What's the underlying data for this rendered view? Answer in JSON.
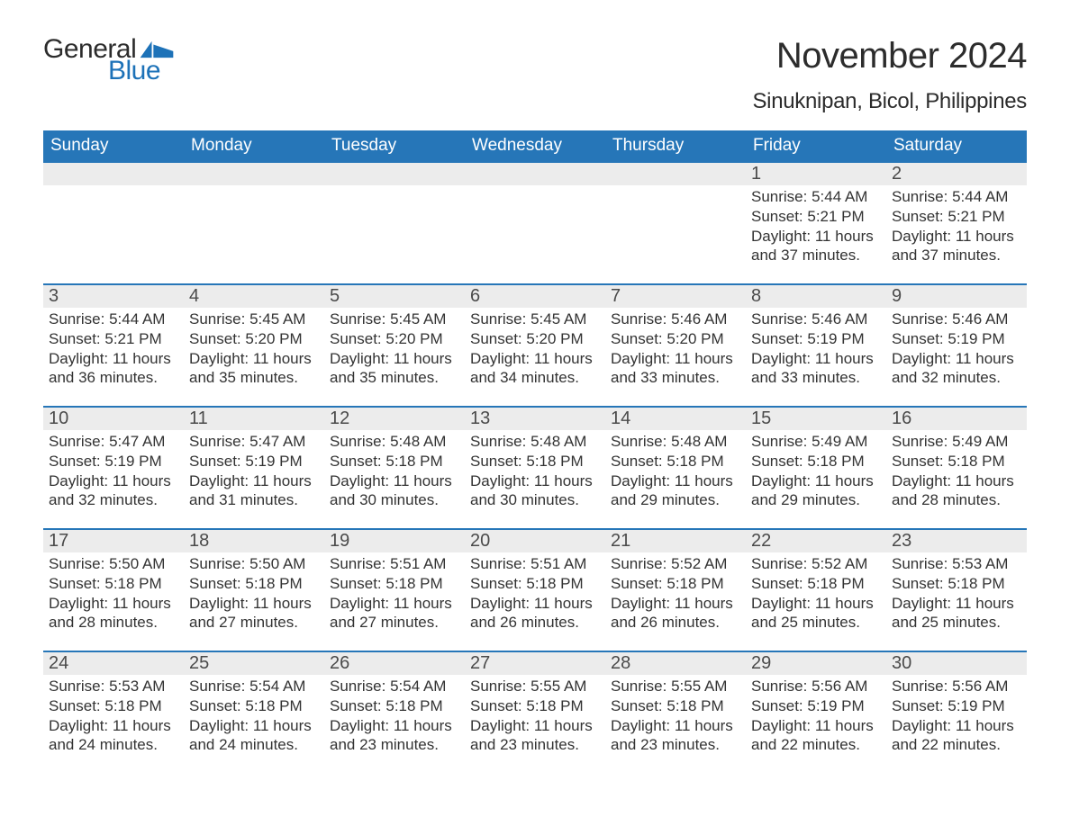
{
  "brand": {
    "general": "General",
    "blue": "Blue"
  },
  "title": "November 2024",
  "location": "Sinuknipan, Bicol, Philippines",
  "header_bg": "#2676b8",
  "stripe_bg": "#ececec",
  "text_color": "#333333",
  "weekdays": [
    "Sunday",
    "Monday",
    "Tuesday",
    "Wednesday",
    "Thursday",
    "Friday",
    "Saturday"
  ],
  "weeks": [
    {
      "days": [
        {
          "n": null
        },
        {
          "n": null
        },
        {
          "n": null
        },
        {
          "n": null
        },
        {
          "n": null
        },
        {
          "n": "1",
          "sunrise": "Sunrise: 5:44 AM",
          "sunset": "Sunset: 5:21 PM",
          "dl1": "Daylight: 11 hours",
          "dl2": "and 37 minutes."
        },
        {
          "n": "2",
          "sunrise": "Sunrise: 5:44 AM",
          "sunset": "Sunset: 5:21 PM",
          "dl1": "Daylight: 11 hours",
          "dl2": "and 37 minutes."
        }
      ]
    },
    {
      "days": [
        {
          "n": "3",
          "sunrise": "Sunrise: 5:44 AM",
          "sunset": "Sunset: 5:21 PM",
          "dl1": "Daylight: 11 hours",
          "dl2": "and 36 minutes."
        },
        {
          "n": "4",
          "sunrise": "Sunrise: 5:45 AM",
          "sunset": "Sunset: 5:20 PM",
          "dl1": "Daylight: 11 hours",
          "dl2": "and 35 minutes."
        },
        {
          "n": "5",
          "sunrise": "Sunrise: 5:45 AM",
          "sunset": "Sunset: 5:20 PM",
          "dl1": "Daylight: 11 hours",
          "dl2": "and 35 minutes."
        },
        {
          "n": "6",
          "sunrise": "Sunrise: 5:45 AM",
          "sunset": "Sunset: 5:20 PM",
          "dl1": "Daylight: 11 hours",
          "dl2": "and 34 minutes."
        },
        {
          "n": "7",
          "sunrise": "Sunrise: 5:46 AM",
          "sunset": "Sunset: 5:20 PM",
          "dl1": "Daylight: 11 hours",
          "dl2": "and 33 minutes."
        },
        {
          "n": "8",
          "sunrise": "Sunrise: 5:46 AM",
          "sunset": "Sunset: 5:19 PM",
          "dl1": "Daylight: 11 hours",
          "dl2": "and 33 minutes."
        },
        {
          "n": "9",
          "sunrise": "Sunrise: 5:46 AM",
          "sunset": "Sunset: 5:19 PM",
          "dl1": "Daylight: 11 hours",
          "dl2": "and 32 minutes."
        }
      ]
    },
    {
      "days": [
        {
          "n": "10",
          "sunrise": "Sunrise: 5:47 AM",
          "sunset": "Sunset: 5:19 PM",
          "dl1": "Daylight: 11 hours",
          "dl2": "and 32 minutes."
        },
        {
          "n": "11",
          "sunrise": "Sunrise: 5:47 AM",
          "sunset": "Sunset: 5:19 PM",
          "dl1": "Daylight: 11 hours",
          "dl2": "and 31 minutes."
        },
        {
          "n": "12",
          "sunrise": "Sunrise: 5:48 AM",
          "sunset": "Sunset: 5:18 PM",
          "dl1": "Daylight: 11 hours",
          "dl2": "and 30 minutes."
        },
        {
          "n": "13",
          "sunrise": "Sunrise: 5:48 AM",
          "sunset": "Sunset: 5:18 PM",
          "dl1": "Daylight: 11 hours",
          "dl2": "and 30 minutes."
        },
        {
          "n": "14",
          "sunrise": "Sunrise: 5:48 AM",
          "sunset": "Sunset: 5:18 PM",
          "dl1": "Daylight: 11 hours",
          "dl2": "and 29 minutes."
        },
        {
          "n": "15",
          "sunrise": "Sunrise: 5:49 AM",
          "sunset": "Sunset: 5:18 PM",
          "dl1": "Daylight: 11 hours",
          "dl2": "and 29 minutes."
        },
        {
          "n": "16",
          "sunrise": "Sunrise: 5:49 AM",
          "sunset": "Sunset: 5:18 PM",
          "dl1": "Daylight: 11 hours",
          "dl2": "and 28 minutes."
        }
      ]
    },
    {
      "days": [
        {
          "n": "17",
          "sunrise": "Sunrise: 5:50 AM",
          "sunset": "Sunset: 5:18 PM",
          "dl1": "Daylight: 11 hours",
          "dl2": "and 28 minutes."
        },
        {
          "n": "18",
          "sunrise": "Sunrise: 5:50 AM",
          "sunset": "Sunset: 5:18 PM",
          "dl1": "Daylight: 11 hours",
          "dl2": "and 27 minutes."
        },
        {
          "n": "19",
          "sunrise": "Sunrise: 5:51 AM",
          "sunset": "Sunset: 5:18 PM",
          "dl1": "Daylight: 11 hours",
          "dl2": "and 27 minutes."
        },
        {
          "n": "20",
          "sunrise": "Sunrise: 5:51 AM",
          "sunset": "Sunset: 5:18 PM",
          "dl1": "Daylight: 11 hours",
          "dl2": "and 26 minutes."
        },
        {
          "n": "21",
          "sunrise": "Sunrise: 5:52 AM",
          "sunset": "Sunset: 5:18 PM",
          "dl1": "Daylight: 11 hours",
          "dl2": "and 26 minutes."
        },
        {
          "n": "22",
          "sunrise": "Sunrise: 5:52 AM",
          "sunset": "Sunset: 5:18 PM",
          "dl1": "Daylight: 11 hours",
          "dl2": "and 25 minutes."
        },
        {
          "n": "23",
          "sunrise": "Sunrise: 5:53 AM",
          "sunset": "Sunset: 5:18 PM",
          "dl1": "Daylight: 11 hours",
          "dl2": "and 25 minutes."
        }
      ]
    },
    {
      "days": [
        {
          "n": "24",
          "sunrise": "Sunrise: 5:53 AM",
          "sunset": "Sunset: 5:18 PM",
          "dl1": "Daylight: 11 hours",
          "dl2": "and 24 minutes."
        },
        {
          "n": "25",
          "sunrise": "Sunrise: 5:54 AM",
          "sunset": "Sunset: 5:18 PM",
          "dl1": "Daylight: 11 hours",
          "dl2": "and 24 minutes."
        },
        {
          "n": "26",
          "sunrise": "Sunrise: 5:54 AM",
          "sunset": "Sunset: 5:18 PM",
          "dl1": "Daylight: 11 hours",
          "dl2": "and 23 minutes."
        },
        {
          "n": "27",
          "sunrise": "Sunrise: 5:55 AM",
          "sunset": "Sunset: 5:18 PM",
          "dl1": "Daylight: 11 hours",
          "dl2": "and 23 minutes."
        },
        {
          "n": "28",
          "sunrise": "Sunrise: 5:55 AM",
          "sunset": "Sunset: 5:18 PM",
          "dl1": "Daylight: 11 hours",
          "dl2": "and 23 minutes."
        },
        {
          "n": "29",
          "sunrise": "Sunrise: 5:56 AM",
          "sunset": "Sunset: 5:19 PM",
          "dl1": "Daylight: 11 hours",
          "dl2": "and 22 minutes."
        },
        {
          "n": "30",
          "sunrise": "Sunrise: 5:56 AM",
          "sunset": "Sunset: 5:19 PM",
          "dl1": "Daylight: 11 hours",
          "dl2": "and 22 minutes."
        }
      ]
    }
  ]
}
